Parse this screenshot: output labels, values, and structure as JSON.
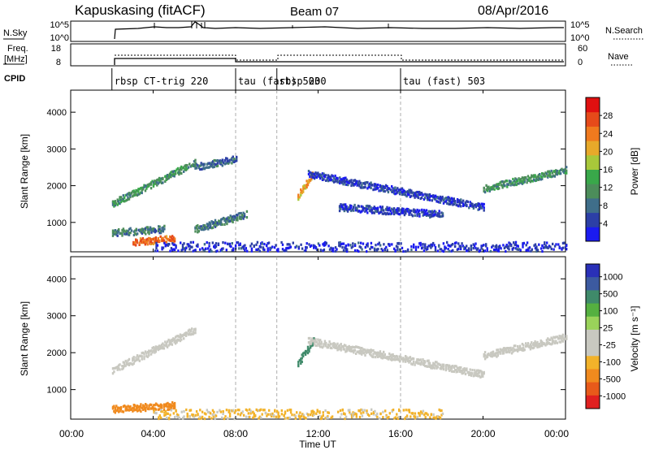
{
  "header": {
    "title": "Kapuskasing (fitACF)",
    "beam": "Beam 07",
    "date": "08/Apr/2016"
  },
  "status_panel": {
    "nsky_label": "N.Sky",
    "nsky_ticks": [
      "10^5",
      "10^0"
    ],
    "nsearch_label": "N.Search",
    "nsearch_ticks": [
      "10^5",
      "10^0"
    ],
    "freq_label_1": "Freq.",
    "freq_label_2": "[MHz]",
    "freq_ticks": [
      "18",
      "8"
    ],
    "nave_label": "Nave",
    "nave_ticks": [
      "60",
      "0"
    ],
    "cpid_label": "CPID"
  },
  "cpid_segments": [
    {
      "start": "02:00",
      "label": "rbsp CT-trig 220"
    },
    {
      "start": "08:00",
      "label": "tau (fast) 503"
    },
    {
      "start": "10:00",
      "label": "rbsp 200"
    },
    {
      "start": "16:00",
      "label": "tau (fast) 503"
    }
  ],
  "chart_data": [
    {
      "type": "heatmap",
      "panel": "power",
      "ylabel": "Slant Range [km]",
      "ylim": [
        200,
        4600
      ],
      "yticks": [
        "1000",
        "2000",
        "3000",
        "4000"
      ],
      "xlim": [
        "00:00",
        "24:00"
      ],
      "colorbar": {
        "label": "Power [dB]",
        "ticks": [
          "4",
          "8",
          "12",
          "16",
          "20",
          "24",
          "28"
        ],
        "colors": [
          "#1b1bf0",
          "#2c3fa6",
          "#3f6e8a",
          "#4c8d5a",
          "#39a84a",
          "#a8c83a",
          "#e7a92a",
          "#f07a1e",
          "#e64a1a",
          "#e01010"
        ]
      },
      "features": [
        {
          "name": "echo band A",
          "start": "02:00",
          "end": "06:00",
          "range_start_km": 1500,
          "range_end_km": 2600,
          "power_db": 12
        },
        {
          "name": "echo band B",
          "start": "06:00",
          "end": "08:00",
          "range_start_km": 2500,
          "range_end_km": 2700,
          "power_db": 8
        },
        {
          "name": "near range C",
          "start": "02:00",
          "end": "04:30",
          "range_start_km": 700,
          "range_end_km": 800,
          "power_db": 10
        },
        {
          "name": "near range D",
          "start": "06:00",
          "end": "08:30",
          "range_start_km": 800,
          "range_end_km": 1200,
          "power_db": 10
        },
        {
          "name": "strong patch",
          "start": "03:00",
          "end": "05:00",
          "range_start_km": 450,
          "range_end_km": 550,
          "power_db": 24
        },
        {
          "name": "spot E",
          "start": "11:00",
          "end": "11:45",
          "range_start_km": 1700,
          "range_end_km": 2300,
          "power_db": 20
        },
        {
          "name": "arc F",
          "start": "11:30",
          "end": "20:00",
          "range_start_km": 2300,
          "range_end_km": 1400,
          "power_db": 6
        },
        {
          "name": "arc G",
          "start": "13:00",
          "end": "18:00",
          "range_start_km": 1400,
          "range_end_km": 1200,
          "power_db": 6
        },
        {
          "name": "band H",
          "start": "20:00",
          "end": "24:00",
          "range_start_km": 1900,
          "range_end_km": 2400,
          "power_db": 12
        },
        {
          "name": "ground clutter",
          "start": "04:00",
          "end": "24:00",
          "range_start_km": 200,
          "range_end_km": 450,
          "power_db": 5
        }
      ]
    },
    {
      "type": "heatmap",
      "panel": "velocity",
      "ylabel": "Slant Range [km]",
      "xlabel": "Time UT",
      "ylim": [
        200,
        4600
      ],
      "yticks": [
        "1000",
        "2000",
        "3000",
        "4000"
      ],
      "xticks": [
        "00:00",
        "04:00",
        "08:00",
        "12:00",
        "16:00",
        "20:00",
        "00:00"
      ],
      "colorbar": {
        "label": "Velocity [m s⁻¹]",
        "ticks": [
          "1000",
          "500",
          "100",
          "25",
          "-25",
          "-100",
          "-500",
          "-1000"
        ],
        "colors": [
          "#2a30b8",
          "#3c5aa0",
          "#3f8a6a",
          "#55b040",
          "#9ad35a",
          "#c8c8c0",
          "#c8c8c0",
          "#f2b22a",
          "#f08a1e",
          "#e85a1a",
          "#e02020"
        ]
      },
      "features": [
        {
          "name": "echo band A",
          "start": "02:00",
          "end": "06:00",
          "range_start_km": 1500,
          "range_end_km": 2600,
          "velocity": 0
        },
        {
          "name": "near range",
          "start": "02:00",
          "end": "05:00",
          "range_start_km": 450,
          "range_end_km": 550,
          "velocity": -150
        },
        {
          "name": "spot E",
          "start": "11:00",
          "end": "11:45",
          "range_start_km": 1700,
          "range_end_km": 2300,
          "velocity": 200
        },
        {
          "name": "arc F",
          "start": "11:30",
          "end": "20:00",
          "range_start_km": 2300,
          "range_end_km": 1400,
          "velocity": 0
        },
        {
          "name": "band H",
          "start": "20:00",
          "end": "24:00",
          "range_start_km": 1900,
          "range_end_km": 2400,
          "velocity": 0
        },
        {
          "name": "ground clutter",
          "start": "04:00",
          "end": "18:00",
          "range_start_km": 200,
          "range_end_km": 450,
          "velocity": -60
        }
      ]
    }
  ]
}
